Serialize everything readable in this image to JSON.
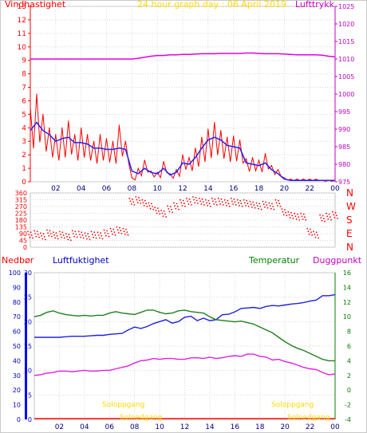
{
  "panel1": {
    "title": "24 hour graph day : 06 April 2019",
    "left_label": "Vindhastighet",
    "right_label": "Lufttrykk",
    "left_ticks": [
      0,
      1,
      2,
      3,
      4,
      5,
      6,
      7,
      8,
      9,
      10,
      11,
      12,
      13
    ],
    "right_ticks": [
      975,
      980,
      985,
      990,
      995,
      1000,
      1005,
      1010,
      1015,
      1020,
      1025
    ],
    "x_ticks": [
      "02",
      "04",
      "06",
      "08",
      "10",
      "12",
      "14",
      "16",
      "18",
      "20",
      "22",
      "00"
    ],
    "colors": {
      "wind": "#ff0000",
      "avg_wind": "#0000ff",
      "pressure": "#e000e0",
      "left_axis": "#ff0000",
      "right_axis": "#c000c0",
      "title": "#ffd800"
    }
  },
  "panel2": {
    "left_ticks": [
      0,
      45,
      90,
      135,
      180,
      225,
      270,
      315,
      360
    ],
    "left_tick_labels": [
      "0",
      "45",
      "90",
      "135",
      "180",
      "225",
      "270",
      "315",
      "360"
    ],
    "shown_ticks": [
      "360",
      "315",
      "270",
      "225",
      "180",
      "135",
      "90",
      "45",
      "0"
    ],
    "compass": [
      "N",
      "W",
      "S",
      "E",
      "N"
    ],
    "x_ticks": [
      "02",
      "04",
      "06",
      "08",
      "10",
      "12",
      "14",
      "16",
      "18",
      "20",
      "22",
      "00"
    ],
    "colors": {
      "dir": "#ff0000",
      "compass": "#ff0000"
    }
  },
  "panel3": {
    "labels": {
      "rain": "Nedbør",
      "humidity": "Luftfuktighet",
      "temperature": "Temperatur",
      "dewpoint": "Duggpunkt"
    },
    "rain_ticks": [
      0,
      10,
      20,
      30,
      40,
      50,
      60,
      70,
      80,
      90,
      100
    ],
    "humidity_ticks": [
      0,
      5,
      10,
      15,
      20,
      25,
      30
    ],
    "temp_ticks": [
      -4,
      -2,
      0,
      2,
      4,
      6,
      8,
      10,
      12,
      14,
      16
    ],
    "x_ticks": [
      "02",
      "04",
      "06",
      "08",
      "10",
      "12",
      "14",
      "16",
      "18",
      "20",
      "22",
      "00"
    ],
    "sun_labels": [
      "Soloppgang",
      "Solnedgang",
      "Soloppgang",
      "Solnedgang"
    ],
    "colors": {
      "rain": "#0000ff",
      "humidity": "#0000c0",
      "temperature": "#008000",
      "dewpoint": "#c000c0",
      "humidity_line": "#2020e0",
      "temp_line": "#208020",
      "dew_line": "#e020e0",
      "sun": "#ffd800"
    }
  },
  "chart_data": [
    {
      "type": "line",
      "title": "24 hour graph day : 06 April 2019",
      "x_hours": [
        0,
        0.5,
        1,
        1.5,
        2,
        2.5,
        3,
        3.5,
        4,
        4.5,
        5,
        5.5,
        6,
        6.5,
        7,
        7.5,
        8,
        8.5,
        9,
        9.5,
        10,
        10.5,
        11,
        11.5,
        12,
        12.5,
        13,
        13.5,
        14,
        14.5,
        15,
        15.5,
        16,
        16.5,
        17,
        17.5,
        18,
        18.5,
        19,
        19.5,
        20,
        20.5,
        21,
        21.5,
        22,
        22.5,
        23,
        23.5,
        24
      ],
      "series": [
        {
          "name": "Vindhastighet",
          "axis": "left",
          "ylim": [
            0,
            13
          ],
          "values": [
            5.5,
            6.5,
            5,
            4,
            3.5,
            4,
            4.5,
            3.5,
            4,
            3.5,
            3,
            3.5,
            3.2,
            3,
            4.2,
            3,
            0.3,
            1,
            1.6,
            0.8,
            0.7,
            1.5,
            0.6,
            0.9,
            2,
            1.8,
            2.5,
            3.3,
            3.9,
            4.4,
            3.8,
            3.3,
            3.4,
            3.1,
            1.7,
            1.8,
            1.6,
            2.1,
            1.2,
            0.9,
            0.3,
            0.2,
            0.2,
            0.2,
            0.2,
            0.2,
            0.1,
            0.1,
            0.1
          ]
        },
        {
          "name": "Avg vind",
          "axis": "left",
          "ylim": [
            0,
            13
          ],
          "values": [
            3.8,
            4.4,
            3.8,
            3.5,
            3.0,
            3.2,
            3.3,
            2.9,
            2.9,
            2.8,
            2.5,
            2.5,
            2.4,
            2.4,
            2.5,
            2.4,
            0.8,
            0.6,
            1.0,
            0.7,
            0.6,
            1.0,
            0.5,
            0.7,
            1.4,
            1.3,
            1.8,
            2.5,
            3.1,
            3.3,
            3.1,
            2.7,
            2.6,
            2.5,
            1.4,
            1.3,
            1.2,
            1.4,
            0.9,
            0.6,
            0.2,
            0.1,
            0.1,
            0.1,
            0.1,
            0.1,
            0.1,
            0.1,
            0.1
          ]
        },
        {
          "name": "Lufttrykk",
          "axis": "right",
          "ylim": [
            975,
            1025
          ],
          "values": [
            1010,
            1010,
            1010,
            1010,
            1010,
            1010,
            1010,
            1010,
            1010,
            1010,
            1010,
            1010,
            1010,
            1010,
            1010,
            1010,
            1010,
            1010.2,
            1010.5,
            1010.8,
            1011,
            1011,
            1011.2,
            1011.2,
            1011.3,
            1011.3,
            1011.4,
            1011.5,
            1011.5,
            1011.5,
            1011.6,
            1011.6,
            1011.6,
            1011.6,
            1011.7,
            1011.7,
            1011.6,
            1011.5,
            1011.5,
            1011.5,
            1011.4,
            1011.3,
            1011.2,
            1011.2,
            1011.2,
            1011.2,
            1011.1,
            1010.8,
            1010.6
          ]
        }
      ]
    },
    {
      "type": "scatter",
      "ylim": [
        0,
        360
      ],
      "x_hours": [
        0,
        0.5,
        1,
        1.5,
        2,
        2.5,
        3,
        3.5,
        4,
        4.5,
        5,
        5.5,
        6,
        6.5,
        7,
        7.5,
        8,
        8.5,
        9,
        9.5,
        10,
        10.5,
        11,
        11.5,
        12,
        12.5,
        13,
        13.5,
        14,
        14.5,
        15,
        15.5,
        16,
        16.5,
        17,
        17.5,
        18,
        18.5,
        19,
        19.5,
        20,
        20.5,
        21,
        21.5,
        22,
        22.5,
        23,
        23.5,
        24
      ],
      "values": [
        80,
        85,
        70,
        90,
        75,
        80,
        65,
        85,
        80,
        70,
        80,
        75,
        90,
        100,
        110,
        100,
        300,
        310,
        290,
        270,
        240,
        220,
        250,
        270,
        290,
        300,
        310,
        300,
        290,
        300,
        300,
        290,
        300,
        290,
        290,
        280,
        270,
        280,
        270,
        290,
        230,
        210,
        200,
        200,
        100,
        80,
        190,
        200,
        210
      ]
    },
    {
      "type": "line",
      "x_hours": [
        0,
        0.5,
        1,
        1.5,
        2,
        2.5,
        3,
        3.5,
        4,
        4.5,
        5,
        5.5,
        6,
        6.5,
        7,
        7.5,
        8,
        8.5,
        9,
        9.5,
        10,
        10.5,
        11,
        11.5,
        12,
        12.5,
        13,
        13.5,
        14,
        14.5,
        15,
        15.5,
        16,
        16.5,
        17,
        17.5,
        18,
        18.5,
        19,
        19.5,
        20,
        20.5,
        21,
        21.5,
        22,
        22.5,
        23,
        23.5,
        24
      ],
      "series": [
        {
          "name": "Luftfuktighet",
          "axis": "humidity",
          "ylim": [
            0,
            30
          ],
          "values": [
            16.8,
            16.8,
            16.8,
            16.8,
            16.8,
            16.9,
            17,
            17,
            17,
            17.1,
            17.2,
            17.2,
            17.4,
            17.5,
            17.6,
            18.3,
            18.9,
            18.6,
            19,
            19.6,
            20,
            20.4,
            19.7,
            20,
            20.9,
            21.1,
            20.2,
            20.7,
            20.2,
            20.4,
            21.4,
            21.5,
            22,
            22.7,
            22.8,
            22.9,
            22.7,
            23.1,
            23.3,
            23.2,
            23.4,
            23.6,
            23.7,
            23.9,
            24.2,
            24.4,
            25.3,
            25.3,
            25.5
          ]
        },
        {
          "name": "Temperatur",
          "axis": "temp",
          "ylim": [
            -4,
            16
          ],
          "values": [
            10,
            10.2,
            10.6,
            10.8,
            10.5,
            10.3,
            10.2,
            10.1,
            10.2,
            10.1,
            10.2,
            10.2,
            10.5,
            10.7,
            10.5,
            10.4,
            10.3,
            10.6,
            10.9,
            10.9,
            10.6,
            10.4,
            10.5,
            10.8,
            10.9,
            10.7,
            10.6,
            10.5,
            10,
            9.6,
            9.5,
            9.4,
            9.3,
            9.4,
            9.2,
            9,
            8.6,
            8.2,
            7.8,
            7.2,
            6.6,
            6.1,
            5.7,
            5.4,
            5,
            4.6,
            4.2,
            4,
            4
          ]
        },
        {
          "name": "Duggpunkt",
          "axis": "temp",
          "ylim": [
            -4,
            16
          ],
          "values": [
            2,
            2.1,
            2.3,
            2.4,
            2.6,
            2.6,
            2.5,
            2.6,
            2.7,
            2.6,
            2.6,
            2.7,
            2.7,
            2.9,
            3.1,
            3.3,
            3.7,
            4,
            4.1,
            4.3,
            4.2,
            4.3,
            4.3,
            4.2,
            4.2,
            4.4,
            4.4,
            4.3,
            4.5,
            4.3,
            4.4,
            4.6,
            4.7,
            4.6,
            4.9,
            4.9,
            4.6,
            4.5,
            4.1,
            4.2,
            3.9,
            3.7,
            3.4,
            3.1,
            2.9,
            2.8,
            2.4,
            2.1,
            2.2
          ]
        }
      ]
    }
  ]
}
